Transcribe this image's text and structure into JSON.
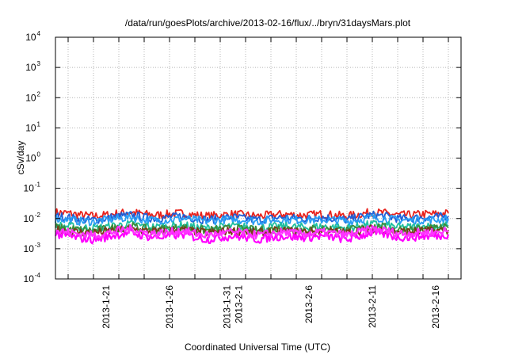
{
  "chart_data": {
    "type": "line",
    "title": "/data/run/goesPlots/archive/2013-02-16/flux/../bryn/31daysMars.plot",
    "xlabel": "Coordinated Universal Time (UTC)",
    "ylabel": "cSv/day",
    "yscale": "log",
    "ylim": [
      0.0001,
      10000
    ],
    "xlim": [
      "2013-01-17",
      "2013-02-18"
    ],
    "grid": true,
    "y_ticks": [
      {
        "base": "10",
        "exp": "-4"
      },
      {
        "base": "10",
        "exp": "-3"
      },
      {
        "base": "10",
        "exp": "-2"
      },
      {
        "base": "10",
        "exp": "-1"
      },
      {
        "base": "10",
        "exp": "0"
      },
      {
        "base": "10",
        "exp": "1"
      },
      {
        "base": "10",
        "exp": "2"
      },
      {
        "base": "10",
        "exp": "3"
      },
      {
        "base": "10",
        "exp": "4"
      }
    ],
    "x_ticks": [
      {
        "date": "2013-01-21",
        "lines": [
          "2013-1-21"
        ]
      },
      {
        "date": "2013-01-26",
        "lines": [
          "2013-1-26"
        ]
      },
      {
        "date": "2013-01-31",
        "lines": [
          "2013-1-31",
          "2013-2-1"
        ]
      },
      {
        "date": "2013-02-06",
        "lines": [
          "2013-2-6"
        ]
      },
      {
        "date": "2013-02-11",
        "lines": [
          "2013-2-11"
        ]
      },
      {
        "date": "2013-02-16",
        "lines": [
          "2013-2-16"
        ]
      }
    ],
    "series": [
      {
        "color": "#e8221c",
        "values": [
          0.016,
          0.015,
          0.013,
          0.012,
          0.013,
          0.015,
          0.016,
          0.014,
          0.013,
          0.014,
          0.015,
          0.013,
          0.012,
          0.013,
          0.014,
          0.013,
          0.012,
          0.013,
          0.014,
          0.013,
          0.013,
          0.014,
          0.013,
          0.012,
          0.014,
          0.016,
          0.015,
          0.013,
          0.013,
          0.014,
          0.014,
          0.015
        ]
      },
      {
        "color": "#1f5fd6",
        "values": [
          0.012,
          0.011,
          0.009,
          0.009,
          0.01,
          0.012,
          0.013,
          0.011,
          0.01,
          0.011,
          0.012,
          0.01,
          0.009,
          0.01,
          0.011,
          0.01,
          0.009,
          0.01,
          0.011,
          0.01,
          0.01,
          0.011,
          0.01,
          0.009,
          0.011,
          0.013,
          0.012,
          0.01,
          0.01,
          0.011,
          0.011,
          0.012
        ]
      },
      {
        "color": "#2a9df4",
        "values": [
          0.01,
          0.009,
          0.008,
          0.008,
          0.009,
          0.01,
          0.011,
          0.009,
          0.009,
          0.009,
          0.01,
          0.009,
          0.008,
          0.009,
          0.009,
          0.009,
          0.008,
          0.009,
          0.009,
          0.009,
          0.009,
          0.009,
          0.009,
          0.008,
          0.009,
          0.011,
          0.01,
          0.009,
          0.009,
          0.009,
          0.009,
          0.01
        ]
      },
      {
        "color": "#1fbfa0",
        "values": [
          0.006,
          0.0055,
          0.005,
          0.0048,
          0.0052,
          0.006,
          0.0065,
          0.0055,
          0.0052,
          0.0055,
          0.006,
          0.0052,
          0.0048,
          0.0052,
          0.0055,
          0.0052,
          0.0048,
          0.0052,
          0.0055,
          0.0052,
          0.0052,
          0.0055,
          0.0052,
          0.0048,
          0.0055,
          0.0065,
          0.006,
          0.0052,
          0.0052,
          0.0055,
          0.0055,
          0.006
        ]
      },
      {
        "color": "#3a8c3a",
        "values": [
          0.005,
          0.0045,
          0.0042,
          0.004,
          0.0044,
          0.005,
          0.0055,
          0.0046,
          0.0044,
          0.0046,
          0.005,
          0.0044,
          0.004,
          0.0044,
          0.0046,
          0.0044,
          0.004,
          0.0044,
          0.0046,
          0.0044,
          0.0044,
          0.0046,
          0.0044,
          0.004,
          0.0046,
          0.0055,
          0.005,
          0.0044,
          0.0044,
          0.0046,
          0.0046,
          0.005
        ]
      },
      {
        "color": "#7a3a1a",
        "values": [
          0.0042,
          0.0038,
          0.0035,
          0.0034,
          0.0037,
          0.0042,
          0.0046,
          0.0039,
          0.0037,
          0.0039,
          0.0042,
          0.0037,
          0.0034,
          0.0037,
          0.0039,
          0.0037,
          0.0034,
          0.0037,
          0.0039,
          0.0037,
          0.0037,
          0.0039,
          0.0037,
          0.0034,
          0.0039,
          0.0046,
          0.0042,
          0.0037,
          0.0037,
          0.0039,
          0.0039,
          0.0042
        ]
      },
      {
        "color": "#ff00ff",
        "values": [
          0.003,
          0.0026,
          0.0022,
          0.002,
          0.0024,
          0.003,
          0.0034,
          0.0026,
          0.0024,
          0.0026,
          0.003,
          0.0024,
          0.002,
          0.0024,
          0.0026,
          0.0024,
          0.002,
          0.0024,
          0.0026,
          0.0024,
          0.0024,
          0.0026,
          0.0024,
          0.002,
          0.0026,
          0.0034,
          0.003,
          0.0024,
          0.0024,
          0.0026,
          0.0026,
          0.003
        ]
      },
      {
        "color": "#ff33ff",
        "values": [
          0.004,
          0.0035,
          0.003,
          0.0028,
          0.0032,
          0.004,
          0.0045,
          0.0035,
          0.0032,
          0.0035,
          0.004,
          0.0032,
          0.0028,
          0.0032,
          0.0035,
          0.0032,
          0.0028,
          0.0032,
          0.0035,
          0.0032,
          0.0032,
          0.0035,
          0.0032,
          0.0028,
          0.0035,
          0.0045,
          0.004,
          0.0032,
          0.0032,
          0.0035,
          0.0035,
          0.004
        ]
      }
    ]
  }
}
